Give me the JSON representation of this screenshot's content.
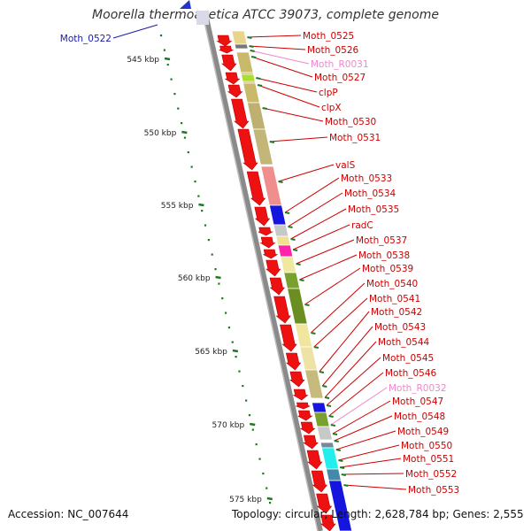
{
  "header": {
    "title": "Moorella thermoacetica ATCC 39073, complete genome"
  },
  "footer": {
    "accession": "Accession: NC_007644",
    "summary": "Topology: circular; Length: 2,628,784 bp; Genes: 2,555"
  },
  "colors": {
    "backbone": "#8a8a8a",
    "forward_arrow": "#ee1111",
    "tick": "#227722",
    "label": "#cc0000",
    "label_blue": "#1a1aaa",
    "label_pink": "#ee88cc"
  },
  "ruler": [
    {
      "label": "545 kbp"
    },
    {
      "label": "550 kbp"
    },
    {
      "label": "555 kbp"
    },
    {
      "label": "560 kbp"
    },
    {
      "label": "565 kbp"
    },
    {
      "label": "570 kbp"
    },
    {
      "label": "575 kbp"
    }
  ],
  "top_label": {
    "label": "Moth_0522",
    "color": "blue"
  },
  "genes": [
    {
      "label": "Moth_0525",
      "color": "red"
    },
    {
      "label": "Moth_0526",
      "color": "red"
    },
    {
      "label": "Moth_R0031",
      "color": "pink"
    },
    {
      "label": "Moth_0527",
      "color": "red"
    },
    {
      "label": "clpP",
      "color": "red"
    },
    {
      "label": "clpX",
      "color": "red"
    },
    {
      "label": "Moth_0530",
      "color": "red"
    },
    {
      "label": "Moth_0531",
      "color": "red"
    },
    {
      "label": "valS",
      "color": "red"
    },
    {
      "label": "Moth_0533",
      "color": "red"
    },
    {
      "label": "Moth_0534",
      "color": "red"
    },
    {
      "label": "Moth_0535",
      "color": "red"
    },
    {
      "label": "radC",
      "color": "red"
    },
    {
      "label": "Moth_0537",
      "color": "red"
    },
    {
      "label": "Moth_0538",
      "color": "red"
    },
    {
      "label": "Moth_0539",
      "color": "red"
    },
    {
      "label": "Moth_0540",
      "color": "red"
    },
    {
      "label": "Moth_0541",
      "color": "red"
    },
    {
      "label": "Moth_0542",
      "color": "red"
    },
    {
      "label": "Moth_0543",
      "color": "red"
    },
    {
      "label": "Moth_0544",
      "color": "red"
    },
    {
      "label": "Moth_0545",
      "color": "red"
    },
    {
      "label": "Moth_0546",
      "color": "red"
    },
    {
      "label": "Moth_R0032",
      "color": "pink"
    },
    {
      "label": "Moth_0547",
      "color": "red"
    },
    {
      "label": "Moth_0548",
      "color": "red"
    },
    {
      "label": "Moth_0549",
      "color": "red"
    },
    {
      "label": "Moth_0550",
      "color": "red"
    },
    {
      "label": "Moth_0551",
      "color": "red"
    },
    {
      "label": "Moth_0552",
      "color": "red"
    },
    {
      "label": "Moth_0553",
      "color": "red"
    }
  ]
}
